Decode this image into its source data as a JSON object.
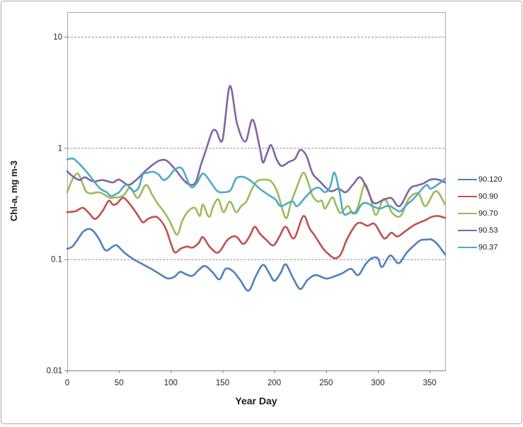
{
  "window": {
    "background": "#FFFFFF",
    "border_color": "#ABABAB"
  },
  "styles": {
    "plot_border_color": "#A6A6A6",
    "axis_color": "#808080",
    "grid_color": "#8C8C8C",
    "tick_label_color": "#262626"
  },
  "chart_data": {
    "type": "line",
    "title": "",
    "xlabel": "Year Day",
    "ylabel": "Chl-a, mg m-3",
    "smoothed": true,
    "x_scale": "linear",
    "y_scale": "log",
    "xlim": [
      0,
      365
    ],
    "ylim": [
      0.01,
      17
    ],
    "x_ticks": [
      0,
      50,
      100,
      150,
      200,
      250,
      300,
      350
    ],
    "x_tick_labels": [
      "0",
      "50",
      "100",
      "150",
      "200",
      "250",
      "300",
      "350"
    ],
    "y_ticks": [
      10,
      1,
      0.1,
      0.01
    ],
    "y_tick_labels": [
      "10",
      "1",
      "0.1",
      "0.01"
    ],
    "grid": "horizontal dashed gridlines at 10, 1, 0.1",
    "legend_position": "right-middle",
    "series": [
      {
        "name": "90.120",
        "color": "#4F81BD",
        "x": [
          0,
          5,
          10,
          15,
          20,
          25,
          31,
          37,
          44,
          48,
          55,
          64,
          73,
          80,
          87,
          93,
          98,
          104,
          109,
          115,
          121,
          127,
          133,
          140,
          147,
          153,
          160,
          167,
          175,
          182,
          189,
          195,
          200,
          206,
          211,
          218,
          225,
          232,
          240,
          250,
          258,
          266,
          274,
          281,
          288,
          294,
          300,
          304,
          312,
          320,
          328,
          335,
          341,
          347,
          352,
          358,
          365
        ],
        "y": [
          0.124,
          0.13,
          0.15,
          0.175,
          0.187,
          0.18,
          0.15,
          0.12,
          0.13,
          0.133,
          0.115,
          0.1,
          0.09,
          0.083,
          0.076,
          0.07,
          0.067,
          0.07,
          0.077,
          0.073,
          0.071,
          0.08,
          0.087,
          0.077,
          0.066,
          0.082,
          0.078,
          0.065,
          0.052,
          0.07,
          0.089,
          0.075,
          0.064,
          0.075,
          0.09,
          0.068,
          0.054,
          0.065,
          0.072,
          0.067,
          0.07,
          0.075,
          0.082,
          0.072,
          0.09,
          0.102,
          0.102,
          0.085,
          0.108,
          0.092,
          0.115,
          0.133,
          0.148,
          0.15,
          0.15,
          0.135,
          0.11
        ]
      },
      {
        "name": "90.90",
        "color": "#C0504D",
        "x": [
          0,
          8,
          15,
          21,
          27,
          34,
          40,
          44,
          48,
          51,
          55,
          62,
          68,
          73,
          78,
          83,
          88,
          95,
          100,
          104,
          110,
          116,
          121,
          127,
          131,
          138,
          146,
          155,
          163,
          170,
          176,
          181,
          186,
          192,
          199,
          205,
          211,
          219,
          228,
          234,
          240,
          247,
          252,
          258,
          264,
          270,
          278,
          283,
          290,
          297,
          306,
          313,
          319,
          327,
          334,
          340,
          346,
          352,
          358,
          365
        ],
        "y": [
          0.265,
          0.27,
          0.29,
          0.26,
          0.23,
          0.27,
          0.335,
          0.31,
          0.315,
          0.34,
          0.355,
          0.3,
          0.25,
          0.215,
          0.23,
          0.24,
          0.235,
          0.19,
          0.14,
          0.115,
          0.125,
          0.13,
          0.127,
          0.14,
          0.158,
          0.128,
          0.115,
          0.15,
          0.16,
          0.137,
          0.16,
          0.196,
          0.17,
          0.15,
          0.133,
          0.16,
          0.196,
          0.154,
          0.244,
          0.19,
          0.158,
          0.125,
          0.112,
          0.102,
          0.11,
          0.15,
          0.2,
          0.213,
          0.2,
          0.207,
          0.154,
          0.173,
          0.16,
          0.18,
          0.2,
          0.213,
          0.225,
          0.24,
          0.245,
          0.235
        ]
      },
      {
        "name": "90.70",
        "color": "#9BBB59",
        "x": [
          0,
          5,
          10,
          14,
          18,
          23,
          29,
          34,
          38,
          42,
          46,
          50,
          55,
          61,
          68,
          76,
          82,
          87,
          93,
          99,
          106,
          111,
          116,
          123,
          128,
          131,
          137,
          141,
          146,
          151,
          157,
          163,
          168,
          173,
          178,
          183,
          190,
          197,
          203,
          211,
          216,
          222,
          228,
          233,
          237,
          242,
          246,
          249,
          256,
          260,
          264,
          271,
          276,
          281,
          287,
          292,
          298,
          306,
          314,
          322,
          330,
          339,
          346,
          356,
          365
        ],
        "y": [
          0.4,
          0.52,
          0.59,
          0.5,
          0.41,
          0.39,
          0.4,
          0.39,
          0.37,
          0.355,
          0.36,
          0.36,
          0.38,
          0.44,
          0.355,
          0.465,
          0.38,
          0.32,
          0.27,
          0.22,
          0.166,
          0.22,
          0.265,
          0.29,
          0.245,
          0.31,
          0.24,
          0.3,
          0.345,
          0.265,
          0.33,
          0.265,
          0.3,
          0.33,
          0.42,
          0.5,
          0.52,
          0.5,
          0.4,
          0.235,
          0.32,
          0.45,
          0.6,
          0.48,
          0.37,
          0.33,
          0.335,
          0.285,
          0.36,
          0.3,
          0.26,
          0.3,
          0.257,
          0.3,
          0.47,
          0.38,
          0.25,
          0.35,
          0.26,
          0.245,
          0.35,
          0.39,
          0.3,
          0.41,
          0.31
        ]
      },
      {
        "name": "90.53",
        "color": "#8064A2",
        "x": [
          0,
          6,
          12,
          17,
          25,
          34,
          44,
          50,
          59,
          67,
          75,
          82,
          89,
          96,
          105,
          112,
          118,
          124,
          129,
          134,
          140,
          144,
          150,
          157,
          164,
          172,
          179,
          186,
          189,
          193,
          197,
          202,
          207,
          214,
          220,
          225,
          231,
          237,
          244,
          254,
          262,
          269,
          276,
          283,
          290,
          296,
          305,
          313,
          321,
          331,
          338,
          344,
          351,
          358,
          365
        ],
        "y": [
          0.615,
          0.55,
          0.515,
          0.545,
          0.5,
          0.515,
          0.49,
          0.52,
          0.466,
          0.52,
          0.615,
          0.7,
          0.77,
          0.77,
          0.63,
          0.52,
          0.47,
          0.49,
          0.7,
          0.96,
          1.4,
          1.42,
          1.19,
          3.6,
          1.66,
          1.14,
          1.8,
          1.0,
          0.74,
          0.9,
          1.06,
          0.8,
          0.69,
          0.75,
          0.8,
          0.96,
          0.85,
          0.59,
          0.5,
          0.41,
          0.43,
          0.4,
          0.47,
          0.545,
          0.42,
          0.32,
          0.34,
          0.355,
          0.3,
          0.43,
          0.46,
          0.48,
          0.52,
          0.52,
          0.49
        ]
      },
      {
        "name": "90.37",
        "color": "#4BACC6",
        "x": [
          0,
          6,
          13,
          20,
          26,
          32,
          38,
          42,
          46,
          50,
          57,
          64,
          69,
          73,
          78,
          83,
          88,
          93,
          98,
          104,
          111,
          119,
          125,
          131,
          138,
          145,
          152,
          158,
          163,
          170,
          178,
          186,
          194,
          201,
          206,
          213,
          218,
          222,
          230,
          237,
          243,
          249,
          254,
          258,
          263,
          267,
          274,
          279,
          284,
          289,
          295,
          302,
          308,
          312,
          317,
          322,
          328,
          334,
          340,
          347,
          351,
          358,
          365
        ],
        "y": [
          0.79,
          0.8,
          0.7,
          0.59,
          0.5,
          0.43,
          0.4,
          0.37,
          0.38,
          0.4,
          0.466,
          0.41,
          0.44,
          0.575,
          0.6,
          0.61,
          0.58,
          0.515,
          0.55,
          0.64,
          0.65,
          0.45,
          0.48,
          0.59,
          0.5,
          0.41,
          0.4,
          0.42,
          0.53,
          0.55,
          0.5,
          0.43,
          0.38,
          0.345,
          0.3,
          0.32,
          0.33,
          0.3,
          0.36,
          0.42,
          0.44,
          0.4,
          0.45,
          0.6,
          0.4,
          0.257,
          0.265,
          0.26,
          0.31,
          0.32,
          0.3,
          0.285,
          0.3,
          0.3,
          0.28,
          0.27,
          0.31,
          0.345,
          0.4,
          0.466,
          0.43,
          0.47,
          0.53
        ]
      }
    ]
  }
}
